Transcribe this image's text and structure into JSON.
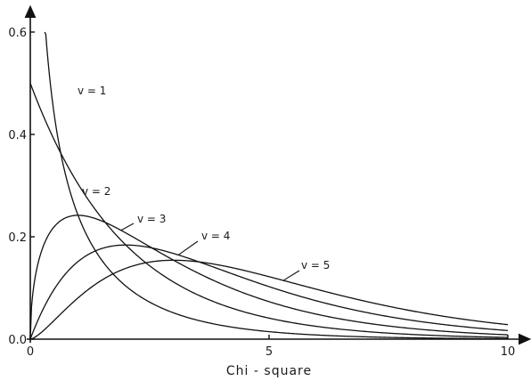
{
  "chart_data": {
    "type": "line",
    "title": "",
    "xlabel": "Chi - square",
    "ylabel": "",
    "xlim": [
      0,
      10
    ],
    "ylim": [
      0,
      0.6
    ],
    "x_ticks": [
      {
        "value": 0,
        "label": "0"
      },
      {
        "value": 5,
        "label": "5"
      },
      {
        "value": 10,
        "label": "10"
      }
    ],
    "y_ticks": [
      {
        "value": 0.0,
        "label": "0.0"
      },
      {
        "value": 0.2,
        "label": "0.2"
      },
      {
        "value": 0.4,
        "label": "0.4"
      },
      {
        "value": 0.6,
        "label": "0.6"
      }
    ],
    "grid": false,
    "legend": "none",
    "series": [
      {
        "name": "v = 1",
        "df": 1,
        "x": [
          0.3,
          0.5,
          1,
          1.5,
          2,
          3,
          4,
          5,
          6,
          7,
          8,
          9,
          10
        ],
        "y": [
          0.627,
          0.439,
          0.242,
          0.154,
          0.104,
          0.051,
          0.027,
          0.015,
          0.008,
          0.005,
          0.003,
          0.002,
          0.001
        ]
      },
      {
        "name": "v = 2",
        "df": 2,
        "x": [
          0,
          0.5,
          1,
          1.5,
          2,
          3,
          4,
          5,
          6,
          7,
          8,
          9,
          10
        ],
        "y": [
          0.5,
          0.389,
          0.303,
          0.236,
          0.184,
          0.112,
          0.068,
          0.041,
          0.025,
          0.015,
          0.009,
          0.006,
          0.003
        ]
      },
      {
        "name": "v = 3",
        "df": 3,
        "x": [
          0,
          0.25,
          0.5,
          1,
          1.5,
          2,
          3,
          4,
          5,
          6,
          7,
          8,
          9,
          10
        ],
        "y": [
          0,
          0.176,
          0.22,
          0.242,
          0.231,
          0.208,
          0.154,
          0.108,
          0.073,
          0.048,
          0.032,
          0.021,
          0.013,
          0.008
        ]
      },
      {
        "name": "v = 4",
        "df": 4,
        "x": [
          0,
          0.5,
          1,
          1.5,
          2,
          3,
          4,
          5,
          6,
          7,
          8,
          9,
          10
        ],
        "y": [
          0,
          0.097,
          0.152,
          0.177,
          0.184,
          0.167,
          0.135,
          0.103,
          0.075,
          0.053,
          0.037,
          0.025,
          0.017
        ]
      },
      {
        "name": "v = 5",
        "df": 5,
        "x": [
          0,
          0.5,
          1,
          1.5,
          2,
          3,
          4,
          5,
          6,
          7,
          8,
          9,
          10
        ],
        "y": [
          0,
          0.037,
          0.081,
          0.115,
          0.138,
          0.154,
          0.144,
          0.122,
          0.096,
          0.072,
          0.052,
          0.036,
          0.025
        ]
      }
    ]
  }
}
